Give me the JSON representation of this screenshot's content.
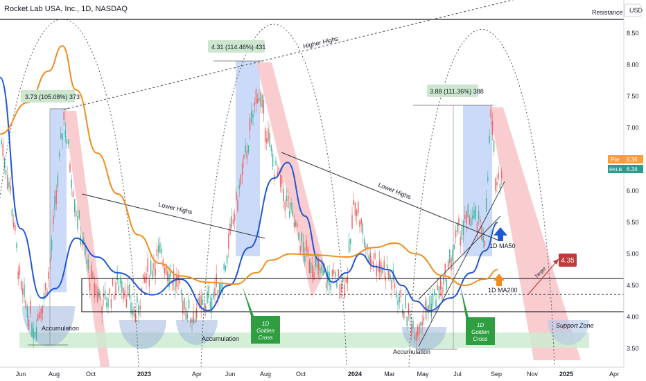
{
  "header": {
    "title": "Rocket Lab USA, Inc., 1D, NASDAQ",
    "currency": "USD"
  },
  "colors": {
    "ma50": "#1e56d6",
    "ma200": "#f08c1d",
    "up_candle": "#3bb39a",
    "down_candle": "#ef5f5f",
    "blue_zone": "#b9cdf6",
    "red_zone": "#f8c3c8",
    "green_zone": "#cdebd0",
    "golden_cross": "#2e9e41",
    "target": "#c0393b"
  },
  "chart_data": {
    "type": "line",
    "x_axis_ticks": [
      "Jun",
      "Aug",
      "Oct",
      "2023",
      "Apr",
      "Jun",
      "Aug",
      "Oct",
      "2024",
      "Mar",
      "May",
      "Jul",
      "Sep",
      "Nov",
      "2025",
      "Apr"
    ],
    "y_axis_ticks": [
      3.5,
      4.0,
      4.5,
      5.0,
      5.5,
      6.0,
      6.5,
      7.0,
      7.5,
      8.0,
      8.5
    ],
    "ylim": [
      3.4,
      8.9
    ],
    "price_labels": {
      "pre": "Pre",
      "pre_value": "6.36",
      "ticker": "RKLB",
      "last_value": "6.34"
    },
    "series": [
      {
        "name": "1D MA50",
        "points": [
          [
            0,
            7.8
          ],
          [
            30,
            5.4
          ],
          [
            60,
            4.3
          ],
          [
            80,
            4.45
          ],
          [
            110,
            5.25
          ],
          [
            140,
            4.95
          ],
          [
            170,
            4.7
          ],
          [
            220,
            4.35
          ],
          [
            260,
            4.6
          ],
          [
            300,
            4.1
          ],
          [
            330,
            4.5
          ],
          [
            360,
            5.1
          ],
          [
            395,
            6.2
          ],
          [
            415,
            6.45
          ],
          [
            440,
            5.6
          ],
          [
            460,
            4.9
          ],
          [
            480,
            4.55
          ],
          [
            500,
            4.7
          ],
          [
            520,
            5.0
          ],
          [
            540,
            4.8
          ],
          [
            560,
            4.75
          ],
          [
            580,
            4.5
          ],
          [
            600,
            4.25
          ],
          [
            620,
            4.1
          ],
          [
            650,
            4.3
          ],
          [
            680,
            4.7
          ],
          [
            700,
            5.05
          ],
          [
            718,
            5.5
          ]
        ]
      },
      {
        "name": "1D MA200",
        "points": [
          [
            0,
            6.9
          ],
          [
            40,
            7.4
          ],
          [
            70,
            7.9
          ],
          [
            90,
            8.3
          ],
          [
            110,
            7.6
          ],
          [
            140,
            6.6
          ],
          [
            170,
            5.95
          ],
          [
            200,
            5.3
          ],
          [
            230,
            4.85
          ],
          [
            260,
            4.65
          ],
          [
            300,
            4.55
          ],
          [
            340,
            4.52
          ],
          [
            370,
            4.7
          ],
          [
            390,
            4.9
          ],
          [
            420,
            5.0
          ],
          [
            460,
            4.98
          ],
          [
            500,
            4.95
          ],
          [
            540,
            5.1
          ],
          [
            570,
            5.17
          ],
          [
            600,
            5.0
          ],
          [
            640,
            4.65
          ],
          [
            670,
            4.5
          ],
          [
            700,
            4.6
          ],
          [
            718,
            4.75
          ]
        ]
      }
    ],
    "annotations": {
      "measure_1": "3.73 (105.08%) 373",
      "measure_2": "4.31 (114.46%) 431",
      "measure_3": "3.88 (111.36%) 388",
      "higher_highs": "Higher Highs",
      "lower_highs_1": "Lower Highs",
      "lower_highs_2": "Lower Highs",
      "accumulation_1": "Accumulation",
      "accumulation_2": "Accumulation",
      "accumulation_3": "Accumulation",
      "golden_cross_1": [
        "1D",
        "Golden",
        "Cross"
      ],
      "golden_cross_2": [
        "1D",
        "Golden",
        "Cross"
      ],
      "ma50_label": "1D MA50",
      "ma200_label": "1D MA200",
      "target_label": "Target",
      "target_value": "4.35",
      "support_zone": "Support Zone",
      "resistance": "Resistance"
    }
  }
}
